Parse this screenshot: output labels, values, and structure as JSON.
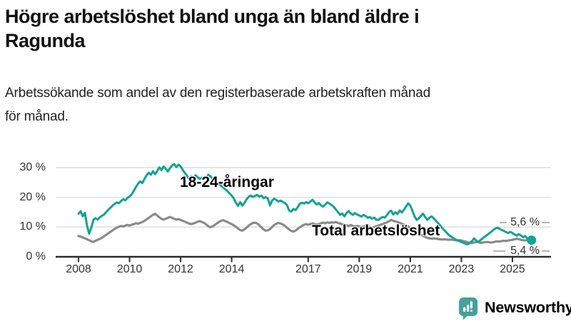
{
  "header": {
    "title_lines": [
      "Högre arbetslöshet bland unga än bland äldre i",
      "Ragunda"
    ],
    "subtitle_lines": [
      "Arbetssökande som andel av den registerbaserade arbetskraften månad",
      "för månad."
    ]
  },
  "chart_data": {
    "type": "line",
    "unit": "%",
    "x_start_year": 2008,
    "points_per_year": 12,
    "x_tick_years": [
      2008,
      2010,
      2012,
      2014,
      2017,
      2019,
      2021,
      2023,
      2025
    ],
    "x_tick_labels": [
      "2008",
      "2010",
      "2012",
      "2014",
      "2017",
      "2019",
      "2021",
      "2023",
      "2025"
    ],
    "y_tick_values": [
      0,
      10,
      20,
      30
    ],
    "y_tick_labels": [
      "0 %",
      "10 %",
      "20 %",
      "30 %"
    ],
    "ylim": [
      0,
      33
    ],
    "grid": "horizontal",
    "legend_position": "inline-labels",
    "series": [
      {
        "name": "18-24-åringar",
        "color": "#12A296",
        "end_label": "5,6 %",
        "end_value": 5.6,
        "values": [
          14.5,
          15.3,
          13.6,
          14.8,
          10.5,
          7.8,
          9.8,
          12.4,
          13.0,
          12.5,
          13.3,
          13.8,
          14.2,
          15.0,
          15.8,
          16.5,
          17.2,
          17.8,
          18.3,
          18.0,
          18.8,
          19.4,
          19.0,
          19.8,
          20.3,
          21.0,
          22.2,
          23.5,
          24.6,
          25.4,
          24.8,
          26.2,
          27.4,
          28.3,
          27.6,
          28.8,
          27.8,
          28.9,
          30.1,
          29.2,
          30.4,
          29.6,
          28.7,
          29.8,
          30.7,
          31.2,
          30.2,
          31.0,
          30.4,
          29.3,
          28.2,
          27.3,
          26.2,
          27.1,
          26.6,
          27.4,
          26.8,
          26.2,
          26.6,
          26.1,
          26.6,
          27.6,
          27.1,
          26.3,
          25.6,
          25.0,
          24.4,
          23.9,
          23.3,
          22.7,
          22.1,
          21.3,
          20.6,
          19.6,
          18.2,
          17.1,
          18.4,
          17.2,
          18.1,
          19.3,
          20.2,
          20.6,
          20.1,
          20.5,
          20.8,
          20.2,
          20.6,
          19.7,
          20.1,
          19.6,
          17.3,
          18.9,
          19.6,
          19.1,
          18.6,
          18.9,
          18.5,
          18.1,
          17.4,
          15.6,
          15.2,
          16.1,
          15.7,
          16.6,
          17.8,
          18.2,
          17.9,
          18.4,
          18.0,
          18.6,
          19.2,
          18.3,
          17.6,
          18.1,
          17.3,
          16.9,
          17.6,
          18.3,
          17.9,
          17.4,
          16.8,
          15.9,
          15.0,
          14.1,
          14.6,
          13.6,
          14.7,
          15.4,
          14.6,
          14.1,
          14.7,
          14.2,
          13.9,
          13.5,
          14.1,
          13.7,
          13.1,
          13.4,
          12.8,
          13.2,
          12.5,
          12.4,
          13.0,
          13.4,
          13.2,
          14.0,
          15.1,
          15.5,
          14.2,
          15.0,
          14.4,
          15.6,
          14.9,
          15.8,
          16.9,
          18.0,
          17.2,
          15.4,
          13.6,
          12.4,
          12.9,
          13.8,
          14.5,
          13.4,
          12.4,
          13.1,
          13.6,
          12.9,
          12.2,
          11.4,
          10.6,
          9.7,
          8.9,
          8.2,
          7.4,
          6.9,
          6.4,
          5.9,
          5.6,
          5.3,
          5.0,
          4.7,
          4.4,
          4.2,
          4.7,
          5.3,
          6.2,
          5.4,
          5.0,
          5.6,
          6.2,
          6.8,
          7.3,
          7.8,
          8.4,
          9.0,
          9.5,
          9.8,
          9.4,
          9.0,
          8.7,
          8.3,
          8.0,
          8.4,
          8.0,
          7.5,
          7.1,
          7.6,
          7.2,
          6.6,
          7.0,
          6.2,
          5.8,
          5.6
        ]
      },
      {
        "name": "Total arbetslöshet",
        "color": "#8A8A8A",
        "end_label": "5,4 %",
        "end_value": 5.4,
        "values": [
          7.0,
          6.8,
          6.5,
          6.2,
          5.9,
          5.6,
          5.2,
          5.0,
          5.4,
          5.7,
          6.0,
          6.4,
          6.9,
          7.4,
          7.9,
          8.4,
          8.9,
          9.4,
          9.8,
          10.1,
          10.4,
          10.2,
          10.5,
          10.7,
          10.5,
          10.8,
          11.0,
          11.3,
          11.1,
          11.4,
          11.7,
          12.1,
          12.6,
          13.1,
          13.6,
          14.1,
          14.5,
          13.9,
          13.3,
          12.8,
          12.5,
          12.8,
          13.1,
          13.4,
          13.1,
          12.8,
          12.5,
          12.7,
          12.4,
          12.1,
          11.8,
          11.5,
          11.2,
          11.0,
          11.2,
          11.5,
          11.8,
          12.0,
          11.7,
          11.4,
          10.9,
          10.3,
          9.9,
          10.2,
          10.7,
          11.2,
          11.7,
          12.1,
          12.3,
          12.0,
          11.7,
          11.3,
          11.0,
          10.6,
          10.1,
          9.5,
          9.0,
          8.8,
          9.2,
          9.8,
          10.5,
          11.0,
          11.4,
          11.5,
          11.2,
          10.6,
          9.9,
          9.2,
          8.8,
          8.9,
          9.3,
          10.0,
          10.7,
          11.1,
          11.4,
          11.2,
          10.9,
          10.4,
          9.8,
          9.2,
          8.7,
          8.5,
          8.8,
          9.3,
          9.9,
          10.4,
          10.8,
          11.0,
          10.8,
          11.0,
          11.2,
          11.0,
          10.8,
          11.0,
          11.3,
          11.5,
          11.3,
          11.6,
          11.4,
          11.6,
          11.5,
          11.7,
          11.4,
          11.2,
          11.0,
          10.8,
          10.6,
          10.4,
          10.7,
          10.4,
          10.2,
          10.4,
          10.2,
          10.0,
          10.2,
          10.4,
          10.2,
          10.0,
          9.8,
          10.0,
          10.3,
          10.5,
          10.8,
          11.0,
          11.3,
          11.6,
          12.0,
          12.4,
          12.1,
          11.9,
          11.7,
          11.4,
          11.1,
          10.8,
          10.5,
          10.2,
          9.8,
          9.3,
          8.8,
          8.3,
          7.8,
          7.4,
          7.0,
          6.7,
          6.4,
          6.2,
          6.1,
          6.2,
          6.1,
          6.0,
          5.9,
          5.8,
          5.9,
          5.8,
          5.7,
          5.8,
          5.7,
          5.6,
          5.5,
          5.6,
          5.5,
          5.3,
          5.1,
          4.9,
          4.7,
          4.6,
          4.8,
          5.0,
          4.9,
          4.7,
          4.8,
          4.9,
          5.0,
          4.9,
          4.8,
          4.9,
          5.1,
          5.2,
          5.1,
          5.3,
          5.4,
          5.3,
          5.5,
          5.6,
          5.7,
          5.9,
          6.1,
          5.9,
          5.7,
          5.6,
          5.5,
          5.6,
          5.5,
          5.4
        ]
      }
    ]
  },
  "branding": {
    "logo_text": "Newsworthy",
    "logo_color": "#47A09B",
    "logo_icon": "bar-chart-speech-bubble-icon"
  }
}
